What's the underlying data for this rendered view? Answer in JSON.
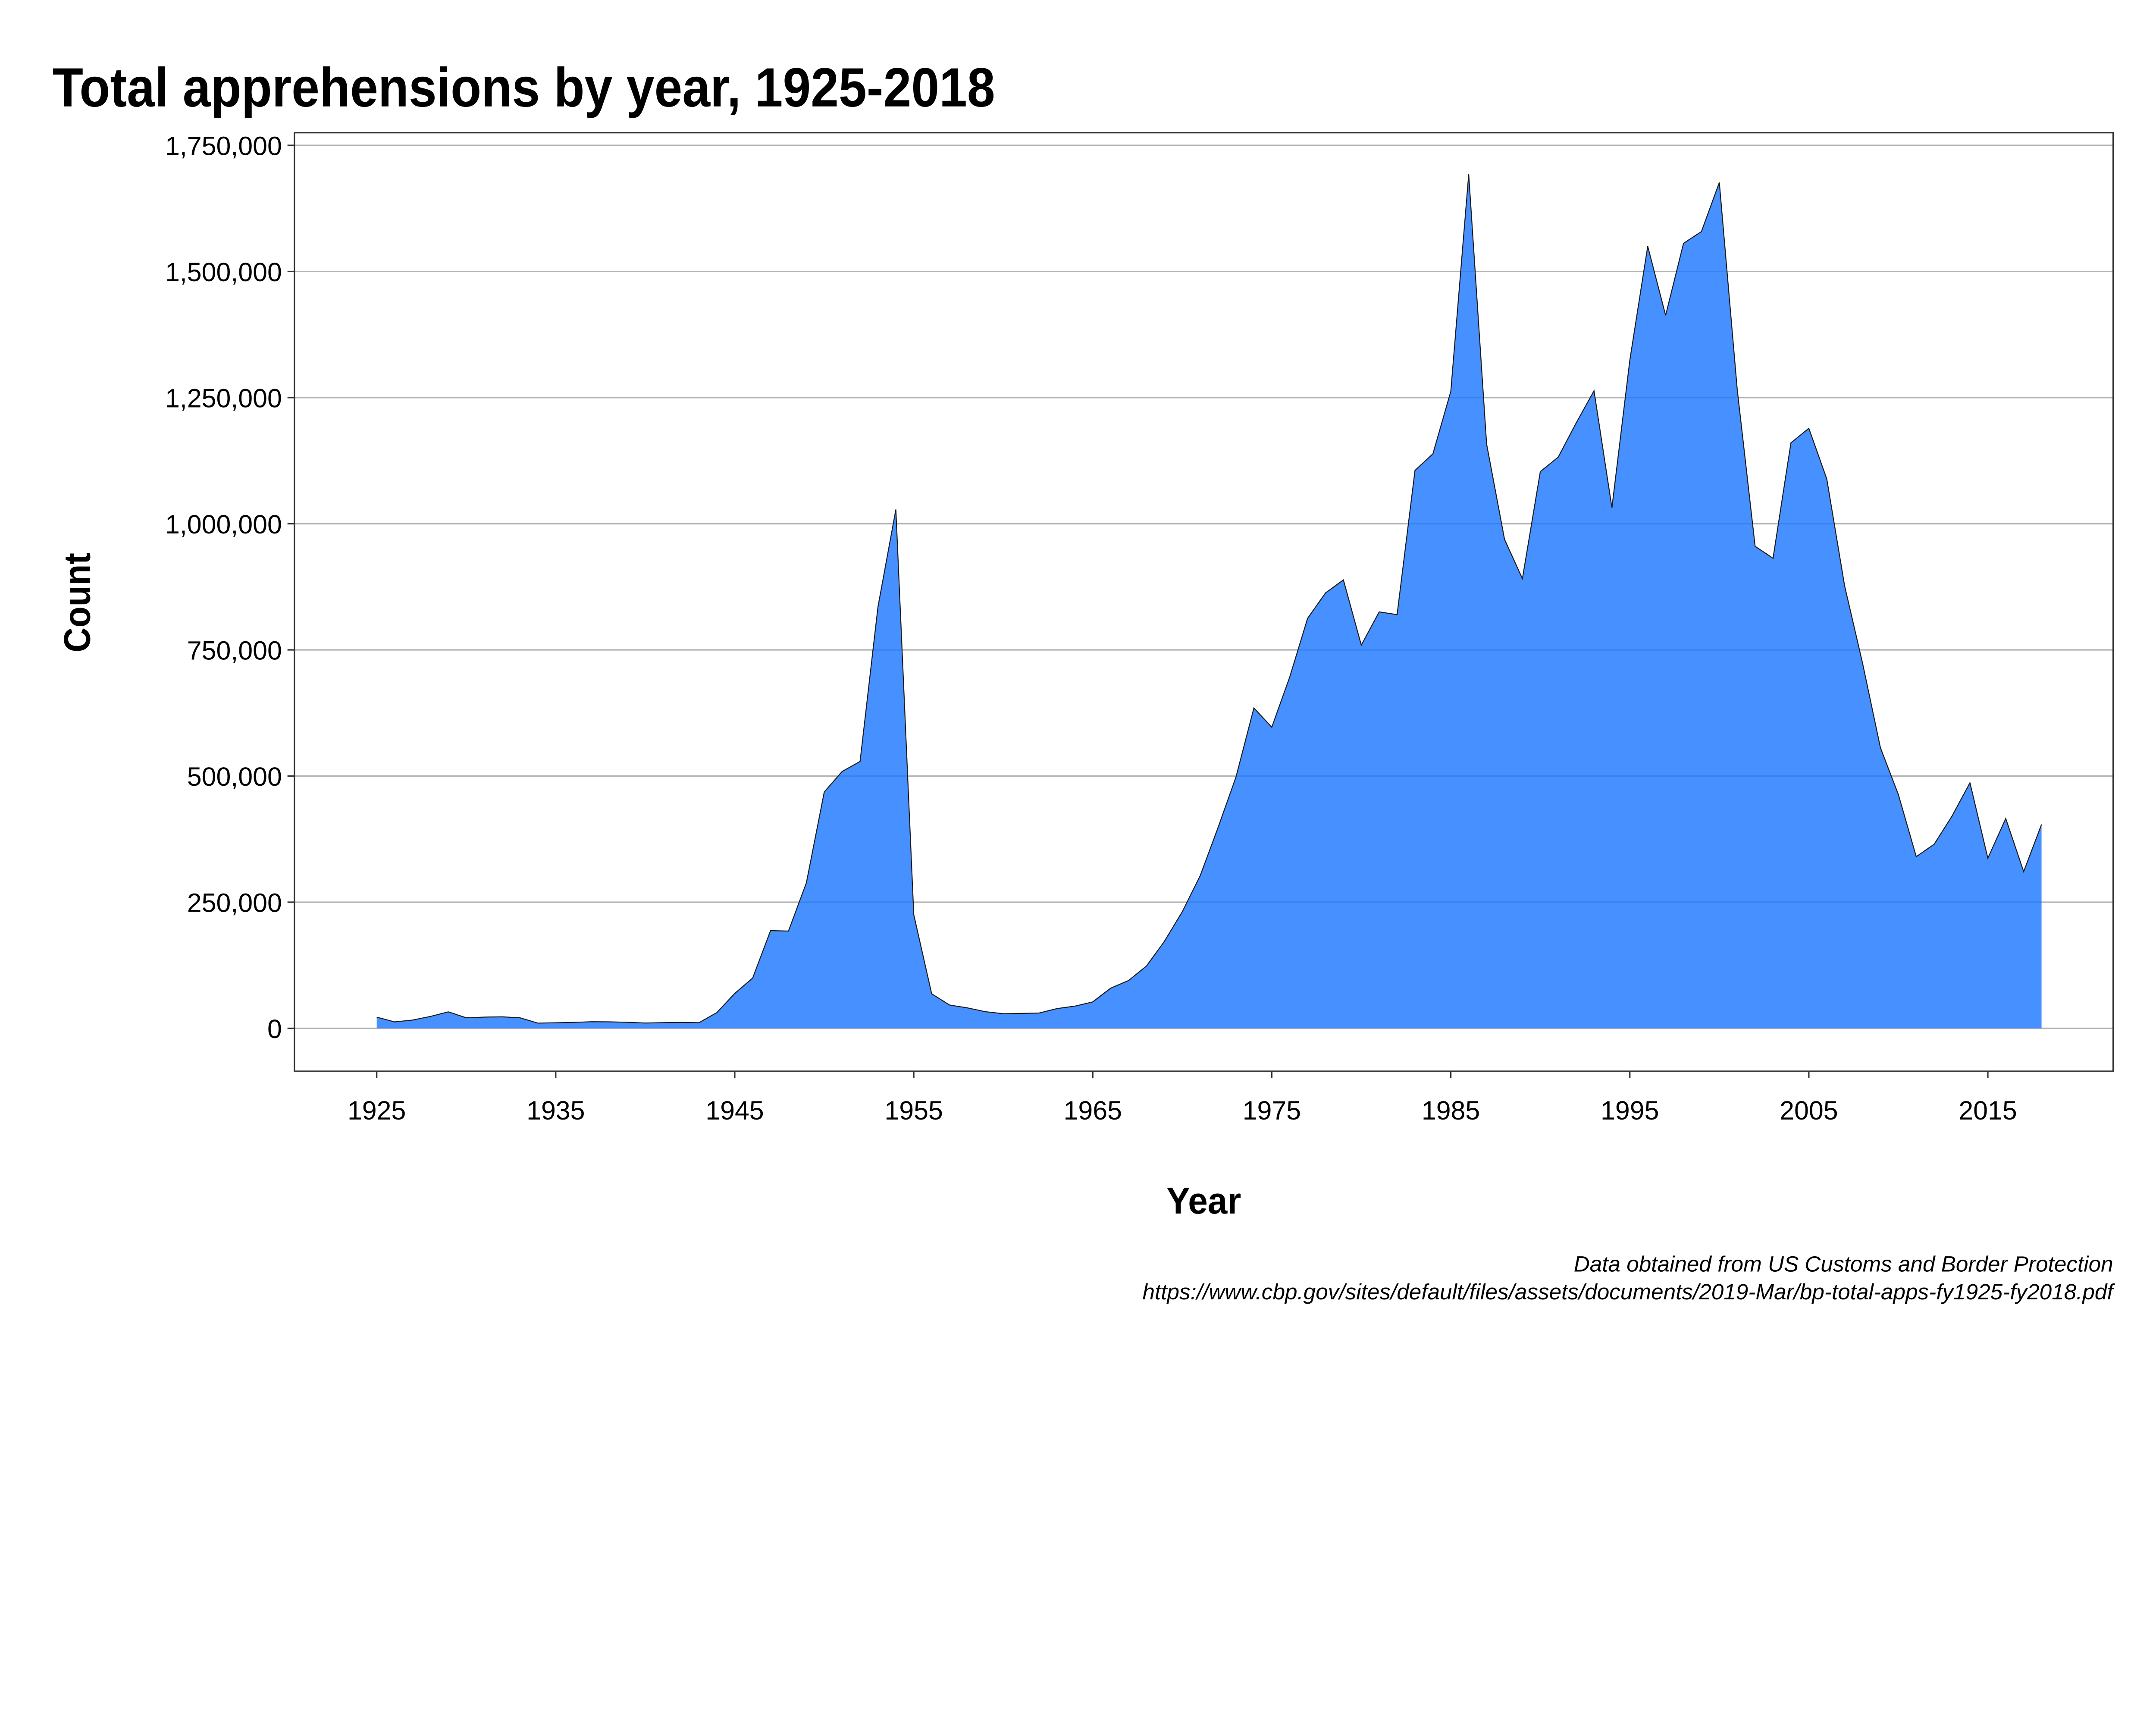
{
  "chart_data": {
    "type": "area",
    "title": "Total apprehensions by year, 1925-2018",
    "xlabel": "Year",
    "ylabel": "Count",
    "xlim": [
      1920.4,
      2022
    ],
    "ylim": [
      -85000,
      1775000
    ],
    "grid": "horizontal",
    "fill_color": "#1e78ff",
    "x_ticks": [
      1925,
      1935,
      1945,
      1955,
      1965,
      1975,
      1985,
      1995,
      2005,
      2015
    ],
    "y_ticks": [
      0,
      250000,
      500000,
      750000,
      1000000,
      1250000,
      1500000,
      1750000
    ],
    "y_tick_labels": [
      "0",
      "250,000",
      "500,000",
      "750,000",
      "1,000,000",
      "1,250,000",
      "1,500,000",
      "1,750,000"
    ],
    "x": [
      1925,
      1926,
      1927,
      1928,
      1929,
      1930,
      1931,
      1932,
      1933,
      1934,
      1935,
      1936,
      1937,
      1938,
      1939,
      1940,
      1941,
      1942,
      1943,
      1944,
      1945,
      1946,
      1947,
      1948,
      1949,
      1950,
      1951,
      1952,
      1953,
      1954,
      1955,
      1956,
      1957,
      1958,
      1959,
      1960,
      1961,
      1962,
      1963,
      1964,
      1965,
      1966,
      1967,
      1968,
      1969,
      1970,
      1971,
      1972,
      1973,
      1974,
      1975,
      1976,
      1977,
      1978,
      1979,
      1980,
      1981,
      1982,
      1983,
      1984,
      1985,
      1986,
      1987,
      1988,
      1989,
      1990,
      1991,
      1992,
      1993,
      1994,
      1995,
      1996,
      1997,
      1998,
      1999,
      2000,
      2001,
      2002,
      2003,
      2004,
      2005,
      2006,
      2007,
      2008,
      2009,
      2010,
      2011,
      2012,
      2013,
      2014,
      2015,
      2016,
      2017,
      2018
    ],
    "values": [
      22199,
      12735,
      16393,
      23566,
      32711,
      20880,
      22276,
      22735,
      20949,
      10319,
      11016,
      11728,
      13054,
      12851,
      12037,
      10492,
      11294,
      11784,
      11175,
      31174,
      69164,
      99591,
      193657,
      192779,
      288253,
      468339,
      509040,
      528815,
      835311,
      1028246,
      225186,
      68420,
      46225,
      40504,
      32996,
      28966,
      29651,
      30272,
      39124,
      43993,
      52422,
      79610,
      94778,
      123519,
      172391,
      231116,
      302517,
      398115,
      498123,
      634777,
      596796,
      696039,
      812541,
      862837,
      888729,
      759420,
      825290,
      819919,
      1105670,
      1138566,
      1262435,
      1692544,
      1158030,
      969214,
      891147,
      1103353,
      1132033,
      1199560,
      1263490,
      1031668,
      1324202,
      1549876,
      1412953,
      1555776,
      1579010,
      1676438,
      1266214,
      955310,
      931557,
      1160395,
      1189075,
      1089092,
      876704,
      723825,
      556041,
      463382,
      340252,
      364768,
      420789,
      486651,
      337117,
      415816,
      310531,
      404142
    ]
  },
  "caption": {
    "line1": "Data obtained from US Customs and Border Protection",
    "line2": "https://www.cbp.gov/sites/default/files/assets/documents/2019-Mar/bp-total-apps-fy1925-fy2018.pdf"
  }
}
